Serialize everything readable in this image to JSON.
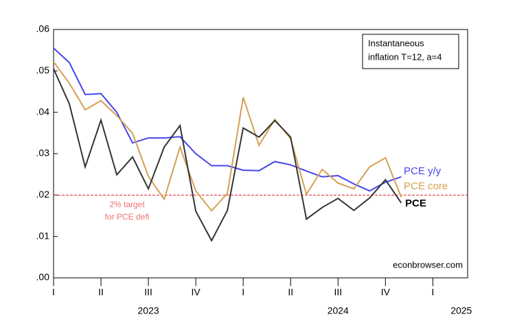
{
  "chart_data": {
    "type": "line",
    "x": [
      0,
      1,
      2,
      3,
      4,
      5,
      6,
      7,
      8,
      9,
      10,
      11,
      12,
      13,
      14,
      15,
      16,
      17,
      18,
      19,
      20,
      21,
      22
    ],
    "xlim": [
      0,
      26.2
    ],
    "xticks": [
      {
        "value": 0,
        "label": "I"
      },
      {
        "value": 3,
        "label": "II"
      },
      {
        "value": 6,
        "label": "III"
      },
      {
        "value": 9,
        "label": "IV"
      },
      {
        "value": 12,
        "label": "I"
      },
      {
        "value": 15,
        "label": "II"
      },
      {
        "value": 18,
        "label": "III"
      },
      {
        "value": 21,
        "label": "IV"
      },
      {
        "value": 24,
        "label": "I"
      }
    ],
    "year_ticks": [
      {
        "value": 6,
        "label": "2023"
      },
      {
        "value": 18,
        "label": "2024"
      },
      {
        "value": 25.8,
        "label": "2025"
      }
    ],
    "ylim": [
      0,
      0.06
    ],
    "yticks": [
      {
        "value": 0,
        "label": ".00"
      },
      {
        "value": 0.01,
        "label": ".01"
      },
      {
        "value": 0.02,
        "label": ".02"
      },
      {
        "value": 0.03,
        "label": ".03"
      },
      {
        "value": 0.04,
        "label": ".04"
      },
      {
        "value": 0.05,
        "label": ".05"
      },
      {
        "value": 0.06,
        "label": ".06"
      }
    ],
    "series": [
      {
        "name": "PCE y/y",
        "color": "#4444ee",
        "values": [
          0.0555,
          0.052,
          0.0443,
          0.0445,
          0.04,
          0.0326,
          0.0338,
          0.0338,
          0.0341,
          0.03,
          0.0271,
          0.0271,
          0.026,
          0.0259,
          0.0281,
          0.0273,
          0.0258,
          0.0244,
          0.0247,
          0.0227,
          0.021,
          0.0231,
          0.0244
        ]
      },
      {
        "name": "PCE core",
        "color": "#d4a050",
        "values": [
          0.0522,
          0.047,
          0.0406,
          0.0428,
          0.0392,
          0.0349,
          0.0245,
          0.019,
          0.0316,
          0.021,
          0.0162,
          0.0204,
          0.0436,
          0.032,
          0.0383,
          0.0336,
          0.0202,
          0.0262,
          0.0229,
          0.0215,
          0.0268,
          0.029,
          0.0195
        ]
      },
      {
        "name": "PCE",
        "color": "#333333",
        "values": [
          0.0505,
          0.042,
          0.0268,
          0.0381,
          0.0249,
          0.0292,
          0.0215,
          0.0316,
          0.0368,
          0.0161,
          0.009,
          0.0163,
          0.0362,
          0.034,
          0.038,
          0.034,
          0.0142,
          0.017,
          0.0192,
          0.0163,
          0.0193,
          0.0237,
          0.0181
        ]
      }
    ],
    "target": {
      "value": 0.02,
      "color": "#dd2222",
      "label_lines": [
        "2% target",
        "for PCE defl"
      ]
    },
    "annotation_lines": [
      "Instantaneous",
      "inflation T=12, a=4"
    ],
    "source": "econbrowser.com"
  }
}
